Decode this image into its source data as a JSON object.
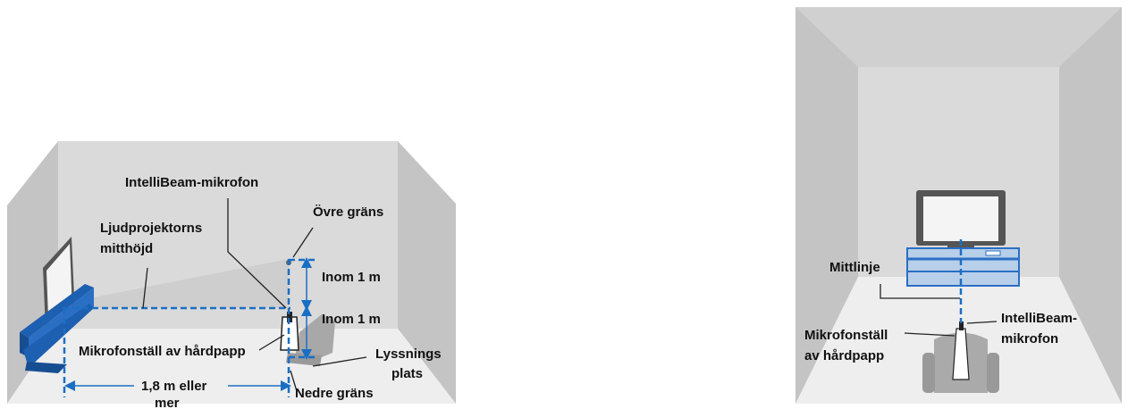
{
  "left": {
    "intellibeam_mic": "IntelliBeam-mikrofon",
    "upper_limit": "Övre gräns",
    "center_height": [
      "Ljudprojektorns",
      "mitthöjd"
    ],
    "within_upper": "Inom 1 m",
    "within_lower": "Inom 1 m",
    "mic_stand": "Mikrofonställ av hårdpapp",
    "listening_position": [
      "Lyssnings",
      "plats"
    ],
    "distance": [
      "1,8 m eller",
      "mer"
    ],
    "lower_limit": "Nedre gräns"
  },
  "right": {
    "center_line": "Mittlinje",
    "intellibeam_mic": [
      "IntelliBeam-",
      "mikrofon"
    ],
    "mic_stand": [
      "Mikrofonställ",
      "av hårdpapp"
    ]
  }
}
